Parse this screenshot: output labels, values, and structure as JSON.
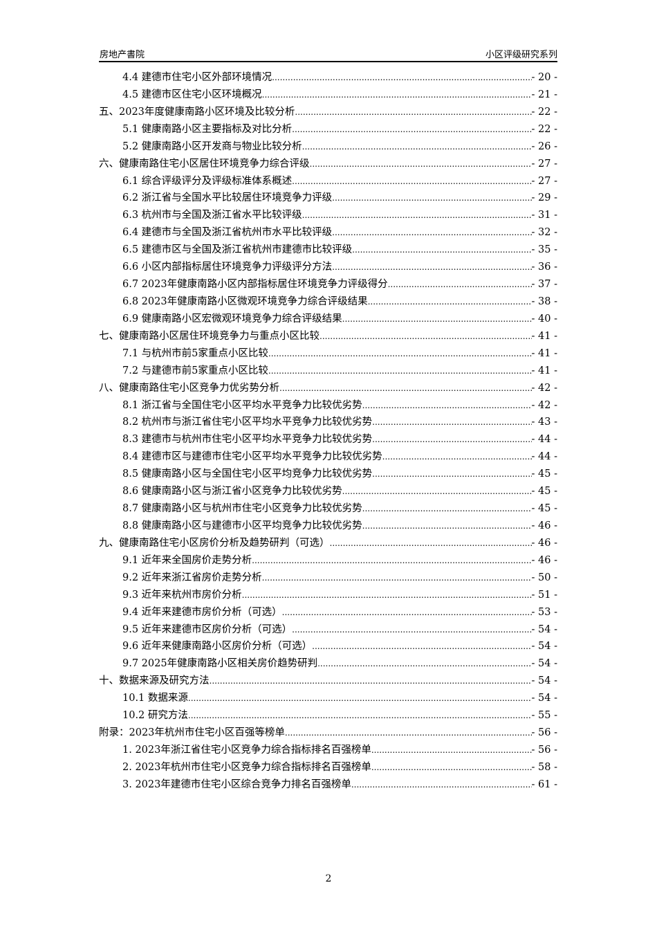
{
  "header": {
    "left": "房地产書院",
    "right": "小区评级研究系列"
  },
  "toc": [
    {
      "level": 2,
      "title": "4.4 建德市住宅小区外部环境情况",
      "page": "- 20 -"
    },
    {
      "level": 2,
      "title": "4.5 建德市区住宅小区环境概况",
      "page": "- 21 -"
    },
    {
      "level": 1,
      "title": "五、2023年度健康南路小区环境及比较分析",
      "page": "- 22 -"
    },
    {
      "level": 2,
      "title": "5.1 健康南路小区主要指标及对比分析",
      "page": "- 22 -"
    },
    {
      "level": 2,
      "title": "5.2 健康南路小区开发商与物业比较分析",
      "page": "- 26 -"
    },
    {
      "level": 1,
      "title": "六、健康南路住宅小区居住环境竞争力综合评级",
      "page": "- 27 -"
    },
    {
      "level": 2,
      "title": "6.1 综合评级评分及评级标准体系概述",
      "page": "- 27 -"
    },
    {
      "level": 2,
      "title": "6.2 浙江省与全国水平比较居住环境竞争力评级",
      "page": "- 29 -"
    },
    {
      "level": 2,
      "title": "6.3 杭州市与全国及浙江省水平比较评级",
      "page": "- 31 -"
    },
    {
      "level": 2,
      "title": "6.4 建德市与全国及浙江省杭州市水平比较评级",
      "page": "- 32 -"
    },
    {
      "level": 2,
      "title": "6.5 建德市区与全国及浙江省杭州市建德市比较评级",
      "page": "- 35 -"
    },
    {
      "level": 2,
      "title": "6.6 小区内部指标居住环境竞争力评级评分方法",
      "page": "- 36 -"
    },
    {
      "level": 2,
      "title": "6.7 2023年健康南路小区内部指标居住环境竞争力评级得分",
      "page": "- 37 -"
    },
    {
      "level": 2,
      "title": "6.8 2023年健康南路小区微观环境竞争力综合评级结果",
      "page": "- 38 -"
    },
    {
      "level": 2,
      "title": "6.9 健康南路小区宏微观环境竞争力综合评级结果",
      "page": "- 40 -"
    },
    {
      "level": 1,
      "title": "七、健康南路小区居住环境竞争力与重点小区比较",
      "page": "- 41 -"
    },
    {
      "level": 2,
      "title": "7.1 与杭州市前5家重点小区比较",
      "page": "- 41 -"
    },
    {
      "level": 2,
      "title": "7.2 与建德市前5家重点小区比较",
      "page": "- 41 -"
    },
    {
      "level": 1,
      "title": "八、健康南路住宅小区竞争力优劣势分析",
      "page": "- 42 -"
    },
    {
      "level": 2,
      "title": "8.1 浙江省与全国住宅小区平均水平竞争力比较优劣势",
      "page": "- 42 -"
    },
    {
      "level": 2,
      "title": "8.2 杭州市与浙江省住宅小区平均水平竞争力比较优劣势",
      "page": "- 43 -"
    },
    {
      "level": 2,
      "title": "8.3 建德市与杭州市住宅小区平均水平竞争力比较优劣势",
      "page": "- 44 -"
    },
    {
      "level": 2,
      "title": "8.4 建德市区与建德市住宅小区平均水平竞争力比较优劣势",
      "page": "- 44 -"
    },
    {
      "level": 2,
      "title": "8.5 健康南路小区与全国住宅小区平均竞争力比较优劣势",
      "page": "- 45 -"
    },
    {
      "level": 2,
      "title": "8.6 健康南路小区与浙江省小区竞争力比较优劣势",
      "page": "- 45 -"
    },
    {
      "level": 2,
      "title": "8.7 健康南路小区与杭州市住宅小区竞争力比较优劣势",
      "page": "- 45 -"
    },
    {
      "level": 2,
      "title": "8.8 健康南路小区与建德市小区平均竞争力比较优劣势",
      "page": "- 46 -"
    },
    {
      "level": 1,
      "title": "九、健康南路住宅小区房价分析及趋势研判（可选）",
      "page": "- 46 -"
    },
    {
      "level": 2,
      "title": "9.1 近年来全国房价走势分析",
      "page": "- 46 -"
    },
    {
      "level": 2,
      "title": "9.2 近年来浙江省房价走势分析",
      "page": "- 50 -"
    },
    {
      "level": 2,
      "title": "9.3 近年来杭州市房价分析",
      "page": "- 51 -"
    },
    {
      "level": 2,
      "title": "9.4 近年来建德市房价分析（可选）",
      "page": "- 53 -"
    },
    {
      "level": 2,
      "title": "9.5 近年来建德市区房价分析（可选）",
      "page": "- 54 -"
    },
    {
      "level": 2,
      "title": "9.6 近年来健康南路小区房价分析（可选）",
      "page": "- 54 -"
    },
    {
      "level": 2,
      "title": "9.7 2025年健康南路小区相关房价趋势研判",
      "page": "- 54 -"
    },
    {
      "level": 1,
      "title": "十、数据来源及研究方法",
      "page": "- 54 -"
    },
    {
      "level": 2,
      "title": "10.1 数据来源",
      "page": "- 54 -"
    },
    {
      "level": 2,
      "title": "10.2 研究方法",
      "page": "- 55 -"
    },
    {
      "level": 1,
      "title": "附录：2023年杭州市住宅小区百强等榜单",
      "page": "- 56 -"
    },
    {
      "level": 2,
      "title": "1. 2023年浙江省住宅小区竞争力综合指标排名百强榜单",
      "page": "- 56 -"
    },
    {
      "level": 2,
      "title": "2. 2023年杭州市住宅小区竞争力综合指标排名百强榜单",
      "page": "- 58 -"
    },
    {
      "level": 2,
      "title": "3. 2023年建德市住宅小区综合竞争力排名百强榜单",
      "page": "- 61 -"
    }
  ],
  "footer": {
    "page_number": "2"
  }
}
